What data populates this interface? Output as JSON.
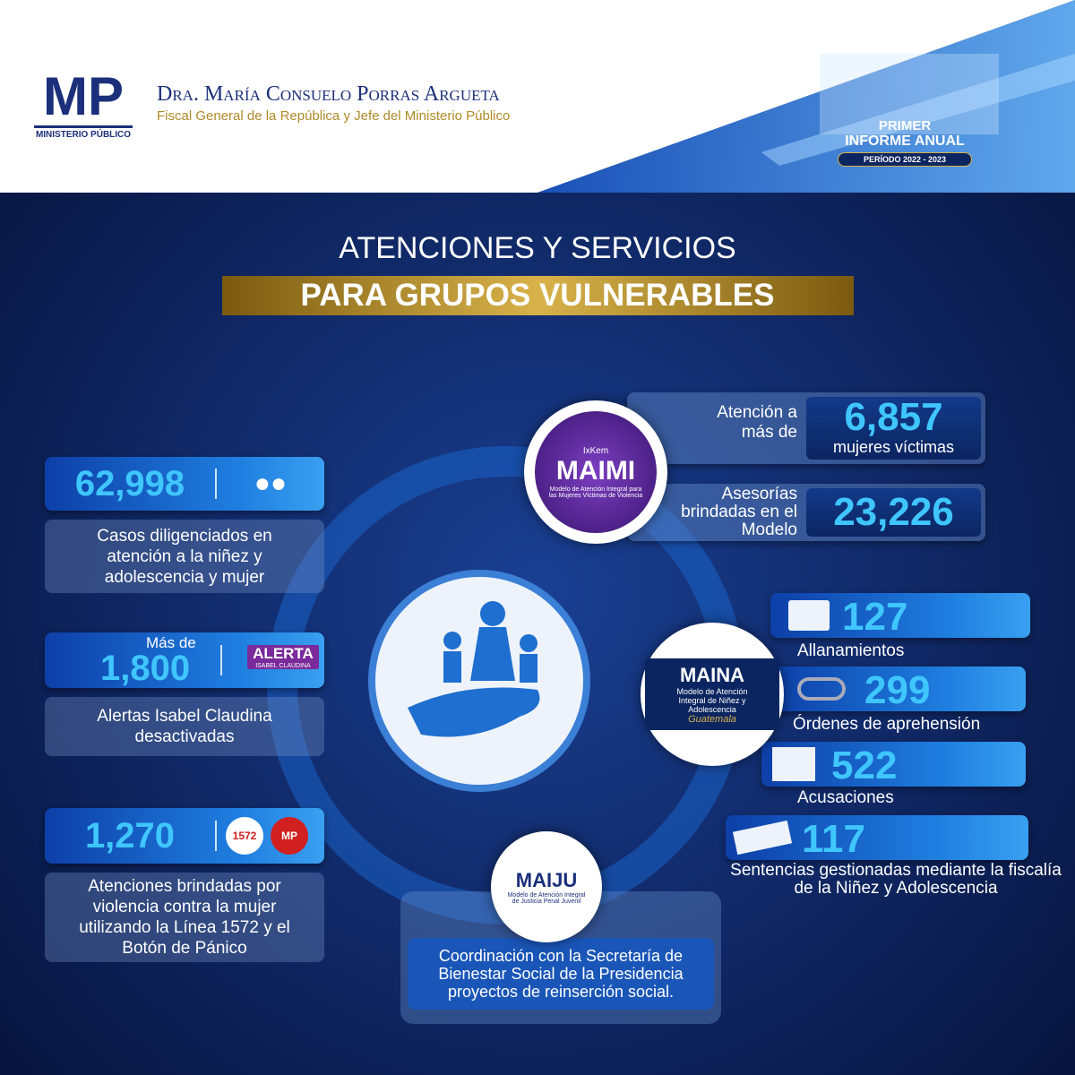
{
  "header": {
    "logo": "MP",
    "logo_sub": "MINISTERIO PÚBLICO",
    "name": "Dra. María Consuelo Porras Argueta",
    "subtitle": "Fiscal General de la República y Jefe del Ministerio Público",
    "badge": {
      "line1": "PRIMER",
      "line2": "INFORME ANUAL",
      "period": "PERÍODO 2022 - 2023"
    }
  },
  "title": {
    "line1": "ATENCIONES Y SERVICIOS",
    "line2": "PARA GRUPOS VULNERABLES"
  },
  "left_stats": [
    {
      "value": "62,998",
      "label": "Casos diligenciados en atención a la niñez y adolescencia y mujer"
    },
    {
      "prefix": "Más de",
      "value": "1,800",
      "logo": "ALERTA",
      "logo_sub": "ISABEL CLAUDINA",
      "label": "Alertas Isabel Claudina desactivadas"
    },
    {
      "value": "1,270",
      "icon": "1572",
      "icon2": "MP",
      "label": "Atenciones brindadas por violencia contra la mujer utilizando la Línea 1572 y el Botón de Pánico"
    }
  ],
  "maimi": {
    "tag": "IxKem",
    "logo": "MAIMI",
    "sub": "Modelo de Atención Integral para las Mujeres Víctimas de Violencia",
    "stats": [
      {
        "label": "Atención a más de",
        "value": "6,857",
        "unit": "mujeres víctimas"
      },
      {
        "label": "Asesorías brindadas en el Modelo",
        "value": "23,226"
      }
    ]
  },
  "maina": {
    "logo": "MAINA",
    "sub": "Modelo de Atención Integral de Niñez y Adolescencia",
    "tag": "Guatemala",
    "stats": [
      {
        "value": "127",
        "label": "Allanamientos"
      },
      {
        "value": "299",
        "label": "Órdenes de aprehensión"
      },
      {
        "value": "522",
        "label": "Acusaciones"
      },
      {
        "value": "117",
        "label": "Sentencias gestionadas mediante la fiscalía de la Niñez y Adolescencia"
      }
    ]
  },
  "maiju": {
    "logo": "MAIJU",
    "sub": "Modelo de Atención Integral de Justicia Penal Juvenil",
    "text": "Coordinación con la Secretaría de Bienestar Social de la Presidencia proyectos de reinserción social."
  }
}
